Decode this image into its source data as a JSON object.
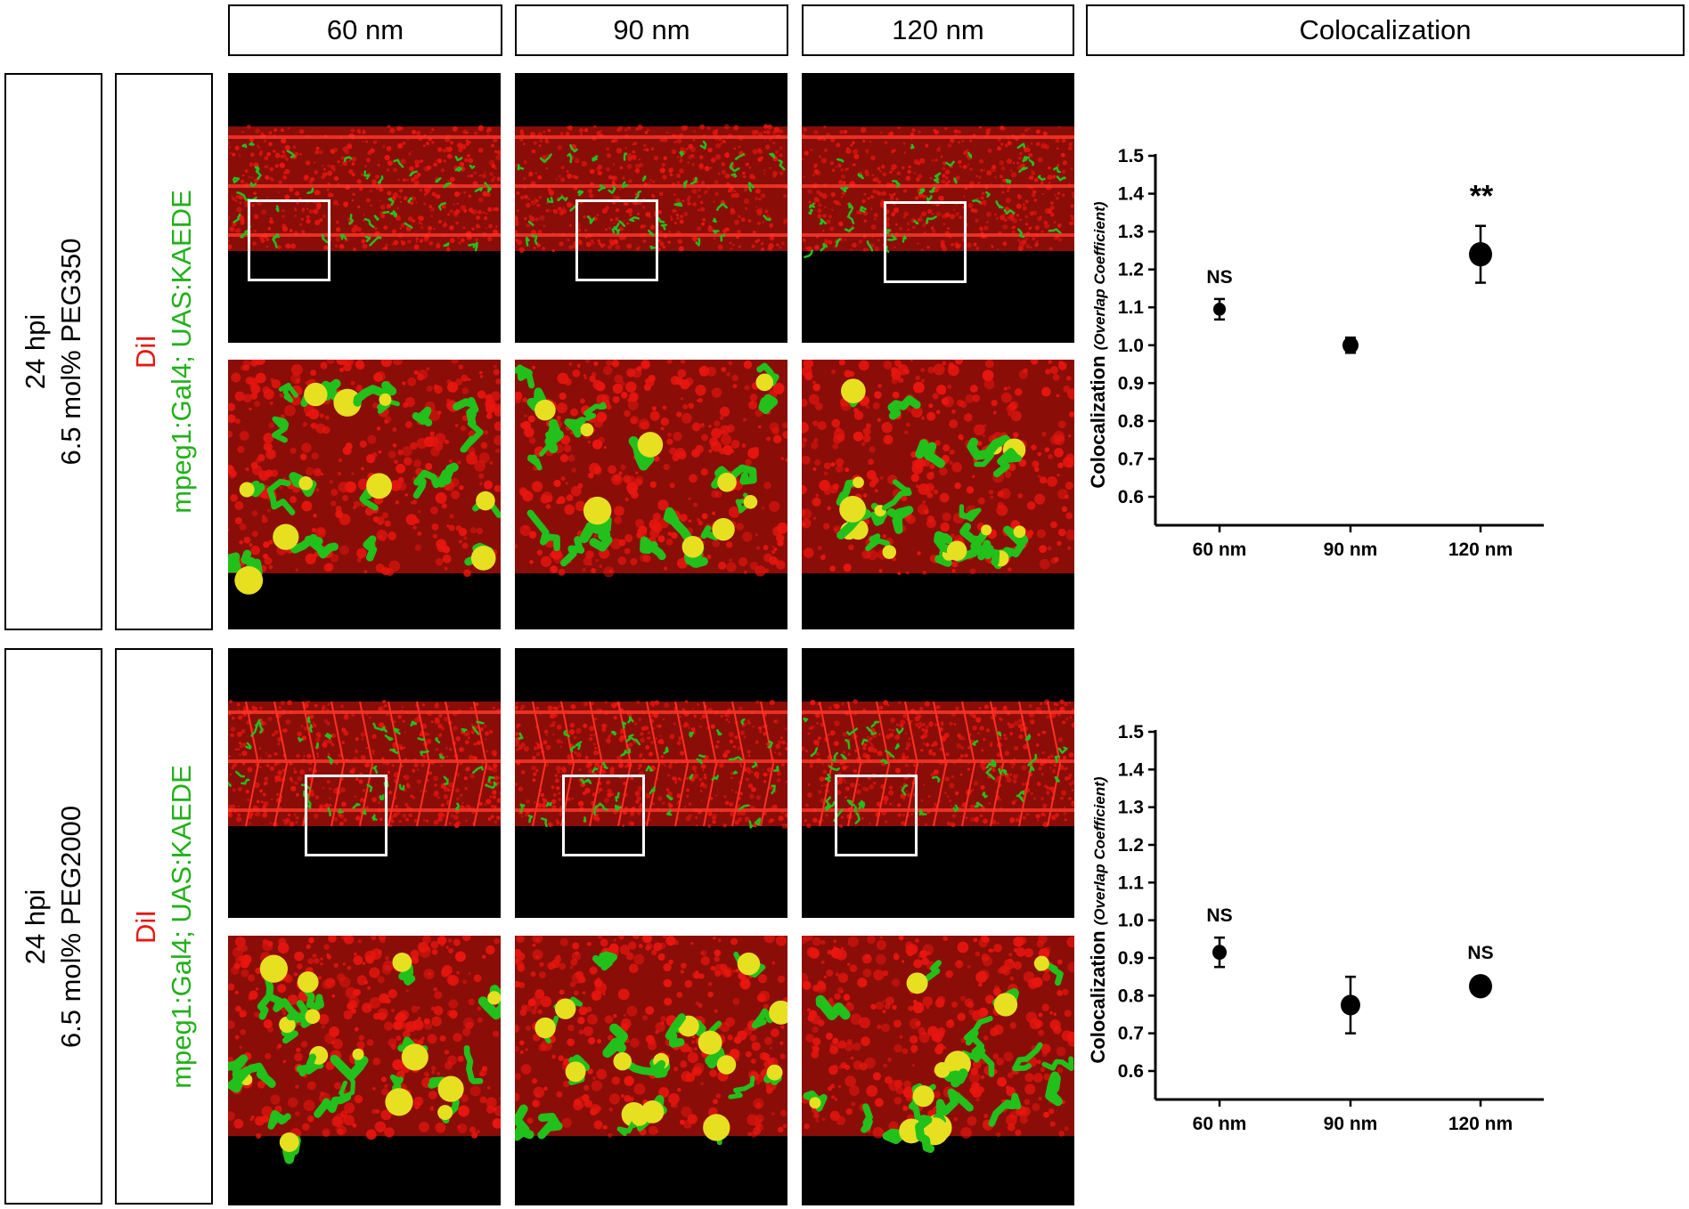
{
  "column_headers": [
    "60 nm",
    "90 nm",
    "120 nm",
    "Colocalization"
  ],
  "rows": [
    {
      "condition_line1": "24 hpi",
      "condition_line2": "6.5 mol% PEG350",
      "stain_red": "DiI",
      "stain_green": "mpeg1:Gal4; UAS:KAEDE"
    },
    {
      "condition_line1": "24 hpi",
      "condition_line2": "6.5 mol% PEG2000",
      "stain_red": "DiI",
      "stain_green": "mpeg1:Gal4; UAS:KAEDE"
    }
  ],
  "colors": {
    "red_channel": "#e8160f",
    "green_channel": "#22c01a",
    "marker": "#000000"
  },
  "chart_data": [
    {
      "type": "scatter",
      "title": "",
      "xlabel": "",
      "ylabel": "Colocalization",
      "ylabel_italic": "(Overlap Coefficient)",
      "categories": [
        "60 nm",
        "90 nm",
        "120 nm"
      ],
      "values": [
        1.095,
        1.0,
        1.24
      ],
      "errors": [
        0.027,
        0.02,
        0.075
      ],
      "annotations": [
        "NS",
        "",
        "**"
      ],
      "ylim": [
        0.6,
        1.5
      ],
      "yticks": [
        "0.6",
        "0.7",
        "0.8",
        "0.9",
        "1.0",
        "1.1",
        "1.2",
        "1.3",
        "1.4",
        "1.5"
      ],
      "grid": false
    },
    {
      "type": "scatter",
      "title": "",
      "xlabel": "",
      "ylabel": "Colocalization",
      "ylabel_italic": "(Overlap Coefficient)",
      "categories": [
        "60 nm",
        "90 nm",
        "120 nm"
      ],
      "values": [
        0.915,
        0.775,
        0.825
      ],
      "errors": [
        0.039,
        0.075,
        0.015
      ],
      "annotations": [
        "NS",
        "",
        "NS"
      ],
      "ylim": [
        0.6,
        1.5
      ],
      "yticks": [
        "0.6",
        "0.7",
        "0.8",
        "0.9",
        "1.0",
        "1.1",
        "1.2",
        "1.3",
        "1.4",
        "1.5"
      ],
      "grid": false
    }
  ]
}
